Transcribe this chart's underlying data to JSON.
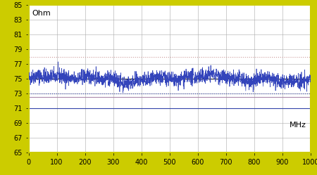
{
  "xlabel": "MHz",
  "ylabel": "Ohm",
  "xlim": [
    0,
    1000
  ],
  "ylim": [
    65,
    85
  ],
  "yticks": [
    65,
    67,
    69,
    71,
    73,
    75,
    77,
    79,
    81,
    83,
    85
  ],
  "xticks": [
    0,
    100,
    200,
    300,
    400,
    500,
    600,
    700,
    800,
    900,
    1000
  ],
  "nominal_line_y": 75.0,
  "ref_upper_dotted_y": 78.0,
  "ref_lower_dotted_y": 73.0,
  "ref_upper_solid_y": 72.5,
  "ref_lower_solid_y": 71.0,
  "signal_mean": 75.0,
  "signal_std": 0.5,
  "signal_color": "#3344bb",
  "nominal_color": "#000000",
  "ref_upper_dotted_color": "#cc9999",
  "ref_lower_dotted_color": "#3344aa",
  "ref_upper_solid_color": "#aa88aa",
  "ref_lower_solid_color": "#3344aa",
  "border_color": "#cccc00",
  "background_color": "#ffffff",
  "grid_color": "#aaaaaa",
  "ylabel_fontsize": 8,
  "xlabel_fontsize": 8,
  "tick_fontsize": 7,
  "seed": 42,
  "n_points": 2000
}
